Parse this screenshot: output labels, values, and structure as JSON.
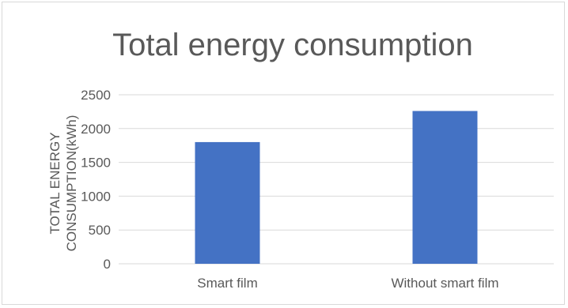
{
  "chart_data": {
    "type": "bar",
    "title": "Total energy consumption",
    "ylabel_lines": [
      "TOTAL ENERGY",
      "CONSUMPTION(kWh)"
    ],
    "xlabel": "",
    "categories": [
      "Smart film",
      "Without smart film"
    ],
    "values": [
      1800,
      2260
    ],
    "ylim": [
      0,
      2500
    ],
    "yticks": [
      0,
      500,
      1000,
      1500,
      2000,
      2500
    ],
    "grid": true,
    "legend": "none",
    "bar_color": "#4472c4"
  }
}
